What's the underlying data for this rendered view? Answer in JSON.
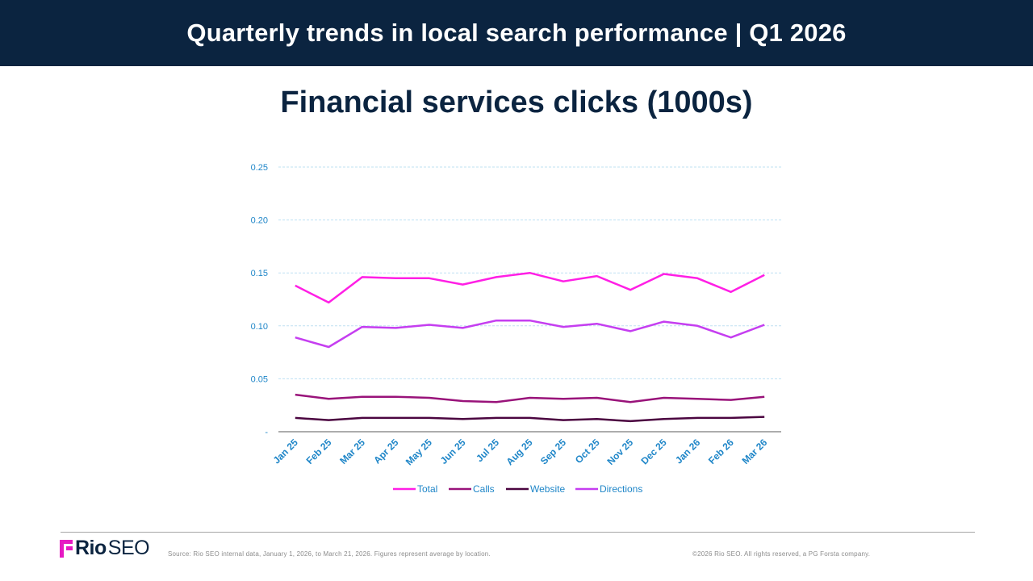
{
  "header": {
    "title": "Quarterly trends in local search performance  |  Q1 2026"
  },
  "chart_data": {
    "type": "line",
    "title": "Financial services clicks (1000s)",
    "xlabel": "",
    "ylabel": "",
    "ylim": [
      0,
      0.25
    ],
    "y_ticks": [
      "-",
      "0.05",
      "0.10",
      "0.15",
      "0.20",
      "0.25"
    ],
    "grid": true,
    "legend_position": "bottom",
    "categories": [
      "Jan 25",
      "Feb 25",
      "Mar 25",
      "Apr 25",
      "May 25",
      "Jun 25",
      "Jul 25",
      "Aug 25",
      "Sep 25",
      "Oct 25",
      "Nov 25",
      "Dec 25",
      "Jan 26",
      "Feb 26",
      "Mar 26"
    ],
    "series": [
      {
        "name": "Total",
        "color": "#ff1fe5",
        "values": [
          0.138,
          0.122,
          0.146,
          0.145,
          0.145,
          0.139,
          0.146,
          0.15,
          0.142,
          0.147,
          0.134,
          0.149,
          0.145,
          0.132,
          0.148
        ]
      },
      {
        "name": "Calls",
        "color": "#99137a",
        "values": [
          0.035,
          0.031,
          0.033,
          0.033,
          0.032,
          0.029,
          0.028,
          0.032,
          0.031,
          0.032,
          0.028,
          0.032,
          0.031,
          0.03,
          0.033
        ]
      },
      {
        "name": "Website",
        "color": "#4b0540",
        "values": [
          0.013,
          0.011,
          0.013,
          0.013,
          0.013,
          0.012,
          0.013,
          0.013,
          0.011,
          0.012,
          0.01,
          0.012,
          0.013,
          0.013,
          0.014
        ]
      },
      {
        "name": "Directions",
        "color": "#c53ef0",
        "values": [
          0.089,
          0.08,
          0.099,
          0.098,
          0.101,
          0.098,
          0.105,
          0.105,
          0.099,
          0.102,
          0.095,
          0.104,
          0.1,
          0.089,
          0.101
        ]
      }
    ]
  },
  "colors": {
    "header_bg": "#0b2440",
    "axis_text": "#1f86c8",
    "gridline": "#bfe0f2",
    "logo_accent": "#e619c3"
  },
  "footer": {
    "logo_bold": "Rio",
    "logo_light": "SEO",
    "logo_icon": "rio-seo-mark-icon",
    "source": "Source: Rio SEO internal data, January 1, 2026, to March 21, 2026. Figures represent average by location.",
    "copyright": "©2026 Rio SEO. All rights reserved, a PG Forsta company."
  }
}
